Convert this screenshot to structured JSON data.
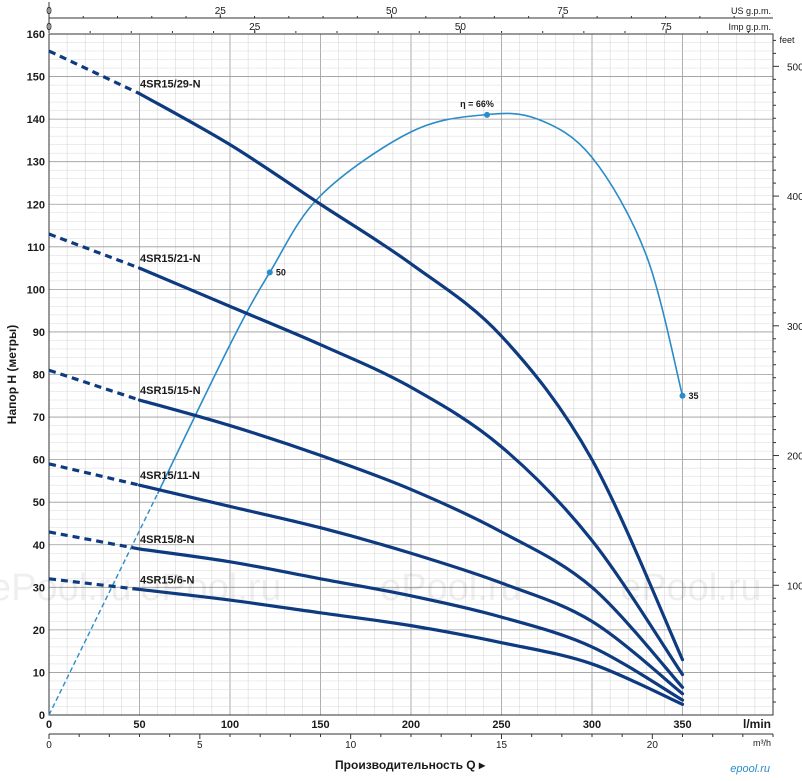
{
  "chart_data": {
    "type": "line",
    "xlabel": "Производительность Q",
    "ylabel": "Напор H (метры)",
    "x_unit": "l/min",
    "x_secondary_unit": "m³/h",
    "top_units": [
      "US g.p.m.",
      "Imp g.p.m."
    ],
    "right_unit": "feet",
    "xlim": [
      0,
      350
    ],
    "ylim": [
      0,
      160
    ],
    "x_ticks": [
      0,
      50,
      100,
      150,
      200,
      250,
      300,
      350
    ],
    "y_ticks": [
      0,
      10,
      20,
      30,
      40,
      50,
      60,
      70,
      80,
      90,
      100,
      110,
      120,
      130,
      140,
      150,
      160
    ],
    "m3h_ticks": [
      0,
      5,
      10,
      15,
      20
    ],
    "us_gpm_ticks": [
      0,
      25,
      50,
      75
    ],
    "imp_gpm_ticks": [
      0,
      25,
      50,
      75
    ],
    "feet_ticks": [
      100,
      200,
      300,
      400,
      500
    ],
    "grid": true,
    "series": [
      {
        "name": "4SR15/29-N",
        "x": [
          0,
          50,
          100,
          150,
          200,
          250,
          300,
          350
        ],
        "y": [
          156,
          146,
          134,
          120,
          106,
          89,
          60,
          13
        ]
      },
      {
        "name": "4SR15/21-N",
        "x": [
          0,
          50,
          100,
          150,
          200,
          250,
          300,
          350
        ],
        "y": [
          113,
          105,
          96,
          87,
          77,
          63,
          41,
          9.5
        ]
      },
      {
        "name": "4SR15/15-N",
        "x": [
          0,
          50,
          100,
          150,
          200,
          250,
          300,
          350
        ],
        "y": [
          81,
          74,
          68,
          61,
          53,
          43,
          30,
          6.5
        ]
      },
      {
        "name": "4SR15/11-N",
        "x": [
          0,
          50,
          100,
          150,
          200,
          250,
          300,
          350
        ],
        "y": [
          59,
          54,
          49,
          44,
          38,
          31,
          22,
          5
        ]
      },
      {
        "name": "4SR15/8-N",
        "x": [
          0,
          50,
          100,
          150,
          200,
          250,
          300,
          350
        ],
        "y": [
          43,
          39,
          36,
          32,
          28,
          23,
          16,
          3.5
        ]
      },
      {
        "name": "4SR15/6-N",
        "x": [
          0,
          50,
          100,
          150,
          200,
          250,
          300,
          350
        ],
        "y": [
          32,
          29.5,
          27,
          24,
          21,
          17,
          12,
          2.5
        ]
      }
    ],
    "efficiency_curve": {
      "x": [
        0,
        60,
        100,
        122,
        150,
        200,
        240,
        270,
        300,
        330,
        350
      ],
      "y": [
        0,
        52,
        87,
        104,
        122,
        137,
        141,
        140,
        131,
        108,
        75
      ],
      "points": [
        {
          "x": 122,
          "y": 104,
          "label": "50"
        },
        {
          "x": 242,
          "y": 141,
          "label": "η = 66%"
        },
        {
          "x": 350,
          "y": 75,
          "label": "35"
        }
      ]
    },
    "watermark": "ePool.ru",
    "logo": "epool.ru"
  },
  "colors": {
    "curve": "#0e3a80",
    "efficiency": "#2a8cc8",
    "grid_major": "#9a9a9a",
    "grid_minor": "#d0d0d0"
  }
}
